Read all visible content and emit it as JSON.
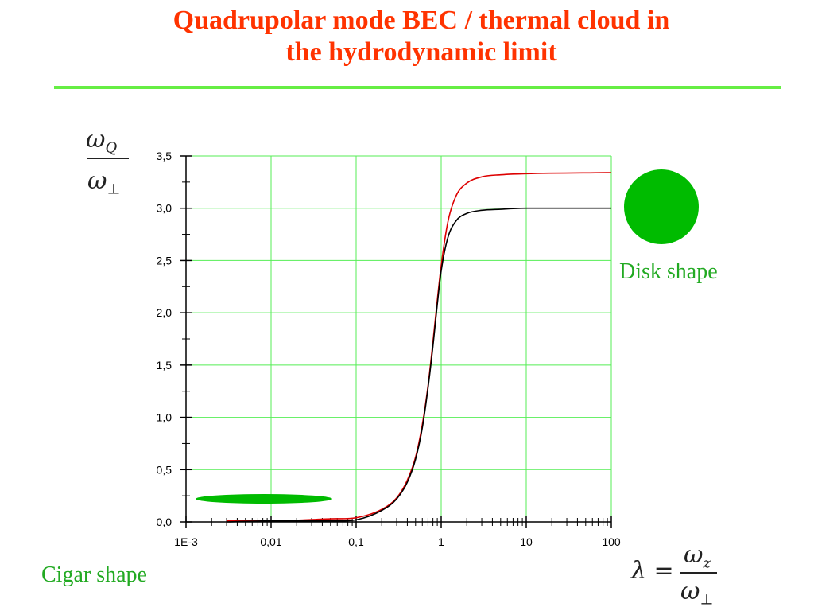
{
  "slide": {
    "title_line1": "Quadrupolar mode BEC / thermal cloud in",
    "title_line2": "the hydrodynamic limit",
    "disk_label": "Disk shape",
    "cigar_label": "Cigar shape",
    "y_label": {
      "numerator": "ω",
      "numerator_sub": "Q",
      "denominator": "ω",
      "denominator_sub": "⊥"
    },
    "x_label": {
      "lhs": "λ =",
      "numerator": "ω",
      "numerator_sub": "z",
      "denominator": "ω",
      "denominator_sub": "⊥"
    },
    "colors": {
      "title": "#ff3300",
      "rule": "#66ee44",
      "shape": "#00bb00",
      "label": "#22aa22",
      "grid": "#55ee55"
    }
  },
  "chart_data": {
    "type": "line",
    "x_scale": "log",
    "xlim": [
      0.001,
      100
    ],
    "ylim": [
      0,
      3.5
    ],
    "xticks": [
      0.001,
      0.01,
      0.1,
      1,
      10,
      100
    ],
    "xtick_labels": [
      "1E-3",
      "0,01",
      "0,1",
      "1",
      "10",
      "100"
    ],
    "yticks": [
      0,
      0.5,
      1,
      1.5,
      2,
      2.5,
      3,
      3.5
    ],
    "ytick_labels": [
      "0,0",
      "0,5",
      "1,0",
      "1,5",
      "2,0",
      "2,5",
      "3,0",
      "3,5"
    ],
    "grid": true,
    "series": [
      {
        "color": "#dd0000",
        "x": [
          0.003,
          0.01,
          0.05,
          0.1,
          0.2,
          0.3,
          0.4,
          0.5,
          0.6,
          0.7,
          0.8,
          0.9,
          1,
          1.2,
          1.5,
          2,
          3,
          5,
          10,
          100
        ],
        "y": [
          0.01,
          0.01,
          0.03,
          0.04,
          0.12,
          0.23,
          0.4,
          0.62,
          0.93,
          1.3,
          1.72,
          2.12,
          2.45,
          2.87,
          3.12,
          3.24,
          3.3,
          3.32,
          3.33,
          3.34
        ]
      },
      {
        "color": "#000000",
        "x": [
          0.003,
          0.01,
          0.05,
          0.1,
          0.2,
          0.3,
          0.4,
          0.5,
          0.6,
          0.7,
          0.8,
          0.9,
          1,
          1.2,
          1.5,
          2,
          3,
          5,
          10,
          100
        ],
        "y": [
          0.0,
          0.01,
          0.01,
          0.02,
          0.11,
          0.22,
          0.38,
          0.6,
          0.9,
          1.28,
          1.68,
          2.08,
          2.4,
          2.72,
          2.88,
          2.95,
          2.98,
          2.99,
          3.0,
          3.0
        ]
      }
    ]
  }
}
